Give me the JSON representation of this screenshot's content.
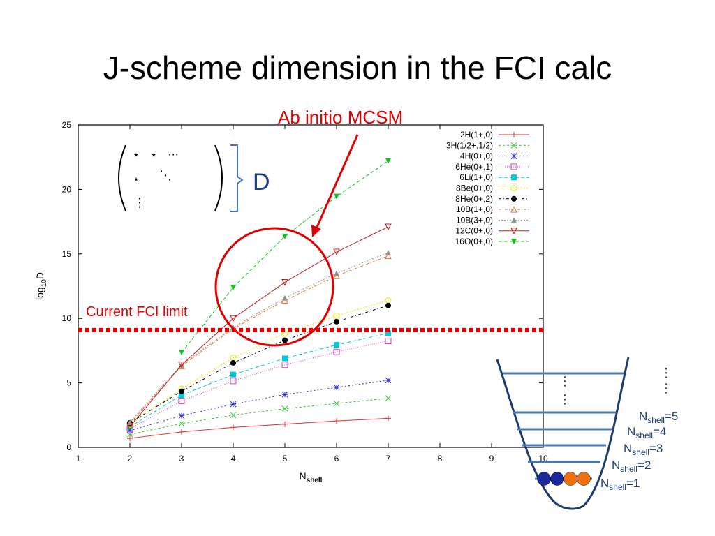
{
  "slide": {
    "title": "J-scheme dimension in the FCI calc"
  },
  "annotations": {
    "mcsm_label": "Ab initio MCSM",
    "fci_limit_label": "Current FCI limit",
    "dim_label": "D"
  },
  "matrix": {
    "row1": "⋆   ⋆   ···",
    "row2": "⋆",
    "diag": "⋱",
    "vdots": "⋮"
  },
  "well": {
    "levels": [
      "N_shell=1",
      "N_shell=2",
      "N_shell=3",
      "N_shell=4",
      "N_shell=5"
    ],
    "ball_colors": [
      "#1a2a9c",
      "#1a2a9c",
      "#f07010",
      "#f07010"
    ]
  },
  "chart_data": {
    "type": "line",
    "xlabel": "N_shell",
    "ylabel": "log10D",
    "xlim": [
      1,
      10
    ],
    "ylim": [
      0,
      25
    ],
    "xticks": [
      1,
      2,
      3,
      4,
      5,
      6,
      7,
      8,
      9,
      10
    ],
    "yticks": [
      0,
      5,
      10,
      15,
      20,
      25
    ],
    "fci_limit": 9.1,
    "legend_position": "top-right",
    "series": [
      {
        "name": "2H(1+,0)",
        "color": "#e03030",
        "marker": "plus",
        "dash": "",
        "x": [
          2,
          3,
          4,
          5,
          6,
          7
        ],
        "y": [
          0.7,
          1.2,
          1.55,
          1.8,
          2.05,
          2.25
        ]
      },
      {
        "name": "3H(1/2+,1/2)",
        "color": "#30c030",
        "marker": "x",
        "dash": "3,3",
        "x": [
          2,
          3,
          4,
          5,
          6,
          7
        ],
        "y": [
          1.0,
          1.85,
          2.5,
          3.0,
          3.4,
          3.8
        ]
      },
      {
        "name": "4H(0+,0)",
        "color": "#3030d0",
        "marker": "star",
        "dash": "2,3",
        "x": [
          2,
          3,
          4,
          5,
          6,
          7
        ],
        "y": [
          1.3,
          2.45,
          3.35,
          4.1,
          4.65,
          5.2
        ]
      },
      {
        "name": "6He(0+,1)",
        "color": "#d040d0",
        "marker": "square-open",
        "dash": "1,2",
        "x": [
          2,
          3,
          4,
          5,
          6,
          7
        ],
        "y": [
          1.45,
          3.6,
          5.15,
          6.4,
          7.4,
          8.25
        ]
      },
      {
        "name": "6Li(1+,0)",
        "color": "#00c8d8",
        "marker": "square-filled",
        "dash": "5,3",
        "x": [
          2,
          3,
          4,
          5,
          6,
          7
        ],
        "y": [
          1.6,
          4.05,
          5.65,
          6.9,
          7.95,
          8.85
        ]
      },
      {
        "name": "8Be(0+,0)",
        "color": "#e8e800",
        "marker": "circle-open",
        "dash": "2,2",
        "x": [
          2,
          3,
          4,
          5,
          6,
          7
        ],
        "y": [
          1.75,
          4.55,
          6.95,
          8.85,
          10.2,
          11.4
        ]
      },
      {
        "name": "8He(0+,2)",
        "color": "#000000",
        "marker": "circle-filled",
        "dash": "4,3,1,3",
        "x": [
          2,
          3,
          4,
          5,
          6,
          7
        ],
        "y": [
          1.9,
          4.35,
          6.55,
          8.3,
          9.75,
          11.0
        ]
      },
      {
        "name": "10B(1+,0)",
        "color": "#e87830",
        "marker": "triangle-open",
        "dash": "4,2,1,2",
        "x": [
          2,
          3,
          4,
          5,
          6,
          7
        ],
        "y": [
          1.85,
          6.3,
          9.2,
          11.4,
          13.3,
          14.85
        ]
      },
      {
        "name": "10B(3+,0)",
        "color": "#909090",
        "marker": "triangle-filled",
        "dash": "2,2",
        "x": [
          2,
          3,
          4,
          5,
          6,
          7
        ],
        "y": [
          1.95,
          6.4,
          9.3,
          11.6,
          13.5,
          15.1
        ]
      },
      {
        "name": "12C(0+,0)",
        "color": "#c02020",
        "marker": "triangle-down-open",
        "dash": "",
        "x": [
          2,
          3,
          4,
          5,
          6,
          7
        ],
        "y": [
          1.6,
          6.4,
          10.0,
          12.8,
          15.15,
          17.1
        ]
      },
      {
        "name": "16O(0+,0)",
        "color": "#10c020",
        "marker": "triangle-down-filled",
        "dash": "5,3",
        "x": [
          3,
          4,
          5,
          6,
          7
        ],
        "y": [
          7.35,
          12.4,
          16.35,
          19.45,
          22.2
        ]
      }
    ]
  }
}
